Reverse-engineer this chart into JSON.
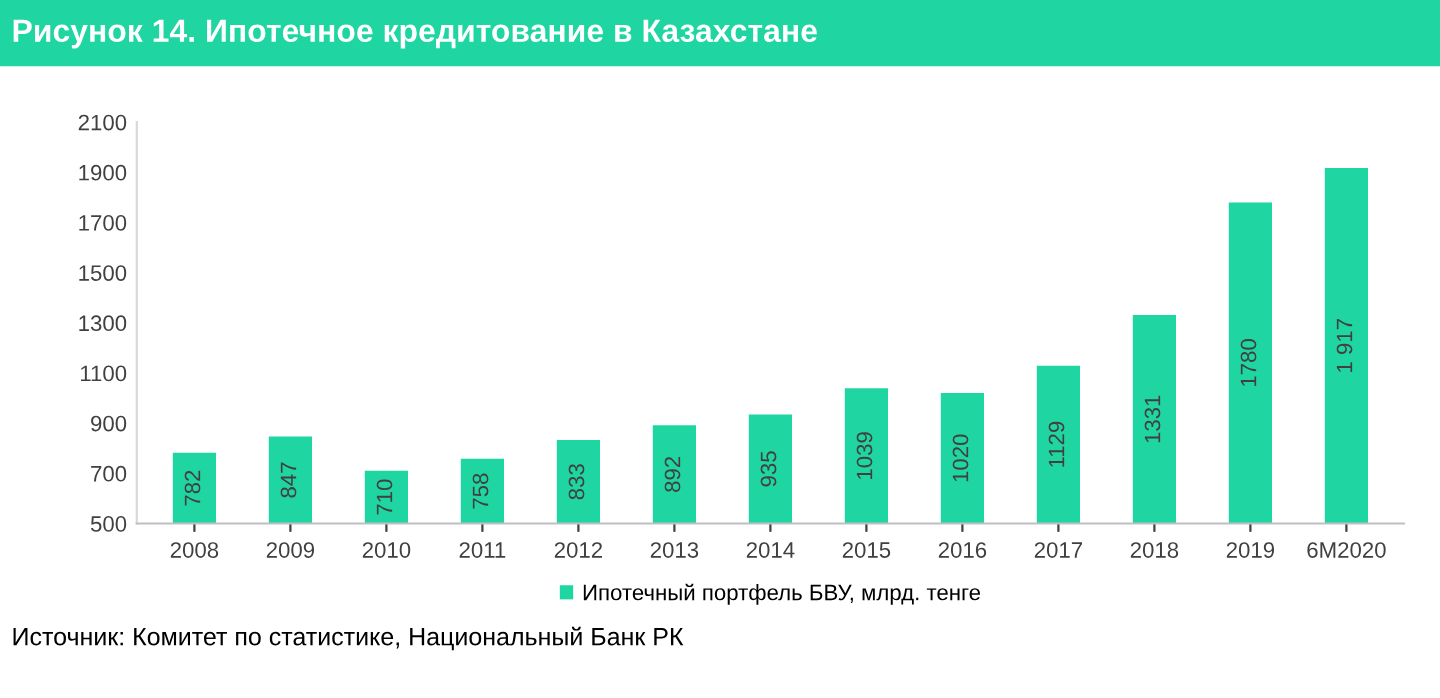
{
  "chart_data": {
    "type": "bar",
    "title": "Рисунок 14. Ипотечное кредитование в Казахстане",
    "categories": [
      "2008",
      "2009",
      "2010",
      "2011",
      "2012",
      "2013",
      "2014",
      "2015",
      "2016",
      "2017",
      "2018",
      "2019",
      "6M2020"
    ],
    "series": [
      {
        "name": "Ипотечный портфель БВУ, млрд. тенге",
        "color": "#1fd6a2",
        "values": [
          782,
          847,
          710,
          758,
          833,
          892,
          935,
          1039,
          1020,
          1129,
          1331,
          1780,
          1917
        ],
        "value_labels": [
          "782",
          "847",
          "710",
          "758",
          "833",
          "892",
          "935",
          "1039",
          "1020",
          "1129",
          "1331",
          "1780",
          "1 917"
        ]
      }
    ],
    "ylim": [
      500,
      2100
    ],
    "yticks": [
      500,
      700,
      900,
      1100,
      1300,
      1500,
      1700,
      1900,
      2100
    ],
    "grid": false,
    "legend": "bottom",
    "annotations": [
      "Источник: Комитет по статистике, Национальный Банк РК"
    ]
  }
}
